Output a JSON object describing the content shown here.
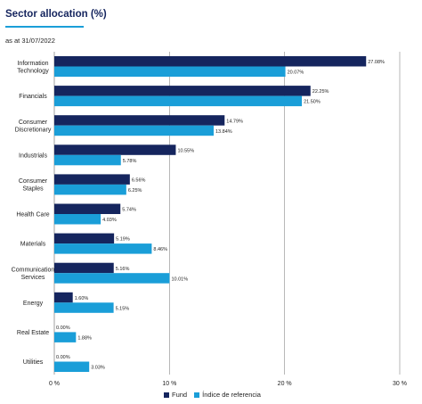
{
  "header": {
    "title": "Sector allocation (%)",
    "subtitle": "as at 31/07/2022"
  },
  "colors": {
    "fund": "#15255e",
    "index": "#1a9ed8",
    "title_rule": "#1a9ed8",
    "gridline": "#888888"
  },
  "chart_data": {
    "type": "bar",
    "orientation": "horizontal",
    "title": "Sector allocation (%)",
    "categories": [
      [
        "Information",
        "Technology"
      ],
      [
        "Financials"
      ],
      [
        "Consumer",
        "Discretionary"
      ],
      [
        "Industrials"
      ],
      [
        "Consumer",
        "Staples"
      ],
      [
        "Health Care"
      ],
      [
        "Materials"
      ],
      [
        "Communication",
        "Services"
      ],
      [
        "Energy"
      ],
      [
        "Real Estate"
      ],
      [
        "Utilities"
      ]
    ],
    "series": [
      {
        "name": "Fund",
        "values": [
          27.08,
          22.25,
          14.79,
          10.55,
          6.56,
          5.74,
          5.19,
          5.16,
          1.6,
          0.0,
          0.0
        ],
        "labels": [
          "27.08%",
          "22.25%",
          "14.79%",
          "10.55%",
          "6.56%",
          "5.74%",
          "5.19%",
          "5.16%",
          "1.60%",
          "0.00%",
          "0.00%"
        ]
      },
      {
        "name": "Índice de referencia",
        "values": [
          20.07,
          21.5,
          13.84,
          5.78,
          6.25,
          4.03,
          8.46,
          10.01,
          5.15,
          1.88,
          3.03
        ],
        "labels": [
          "20.07%",
          "21.50%",
          "13.84%",
          "5.78%",
          "6.25%",
          "4.03%",
          "8.46%",
          "10.01%",
          "5.15%",
          "1.88%",
          "3.03%"
        ]
      }
    ],
    "xlim": [
      0,
      30
    ],
    "xticks": [
      0,
      10,
      20,
      30
    ],
    "xtick_labels": [
      "0 %",
      "10 %",
      "20 %",
      "30 %"
    ],
    "grid": "vertical",
    "legend_position": "bottom-center"
  }
}
